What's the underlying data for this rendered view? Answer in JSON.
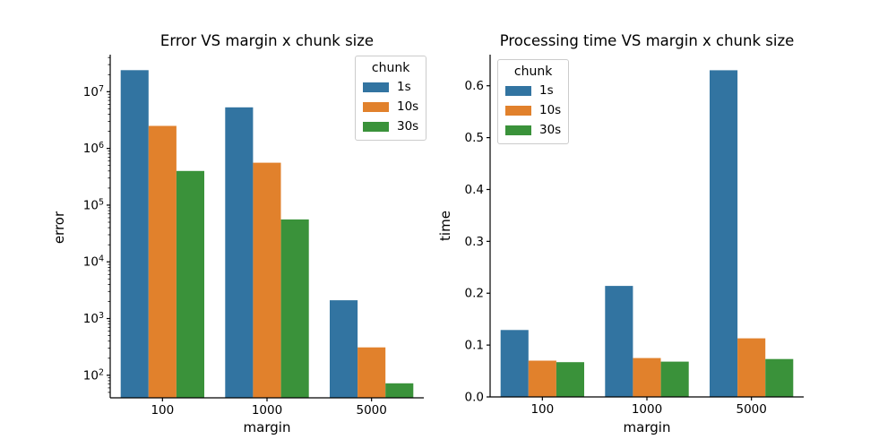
{
  "figure": {
    "background": "#ffffff"
  },
  "palette": {
    "series_blue": "#3274A1",
    "series_orange": "#E1812C",
    "series_green": "#3A923A",
    "axis_color": "#000000",
    "legend_border": "#cccccc"
  },
  "chart_data": [
    {
      "type": "bar",
      "title": "Error VS margin x chunk size",
      "xlabel": "margin",
      "ylabel": "error",
      "yscale": "log",
      "ylim": [
        40,
        45000000
      ],
      "ytick_exponents": [
        2,
        3,
        4,
        5,
        6,
        7
      ],
      "categories": [
        "100",
        "1000",
        "5000"
      ],
      "series": [
        {
          "name": "1s",
          "color": "#3274A1",
          "values": [
            24000000,
            5300000,
            2100
          ]
        },
        {
          "name": "10s",
          "color": "#E1812C",
          "values": [
            2500000,
            560000,
            310
          ]
        },
        {
          "name": "30s",
          "color": "#3A923A",
          "values": [
            400000,
            56000,
            72
          ]
        }
      ],
      "legend": {
        "title": "chunk",
        "position": "upper-right"
      },
      "grid": false
    },
    {
      "type": "bar",
      "title": "Processing time VS margin x chunk size",
      "xlabel": "margin",
      "ylabel": "time",
      "yscale": "linear",
      "ylim": [
        0,
        0.66
      ],
      "yticks": [
        0.0,
        0.1,
        0.2,
        0.3,
        0.4,
        0.5,
        0.6
      ],
      "ytick_labels": [
        "0.0",
        "0.1",
        "0.2",
        "0.3",
        "0.4",
        "0.5",
        "0.6"
      ],
      "categories": [
        "100",
        "1000",
        "5000"
      ],
      "series": [
        {
          "name": "1s",
          "color": "#3274A1",
          "values": [
            0.129,
            0.214,
            0.63
          ]
        },
        {
          "name": "10s",
          "color": "#E1812C",
          "values": [
            0.07,
            0.075,
            0.113
          ]
        },
        {
          "name": "30s",
          "color": "#3A923A",
          "values": [
            0.067,
            0.068,
            0.073
          ]
        }
      ],
      "legend": {
        "title": "chunk",
        "position": "upper-left"
      },
      "grid": false
    }
  ]
}
